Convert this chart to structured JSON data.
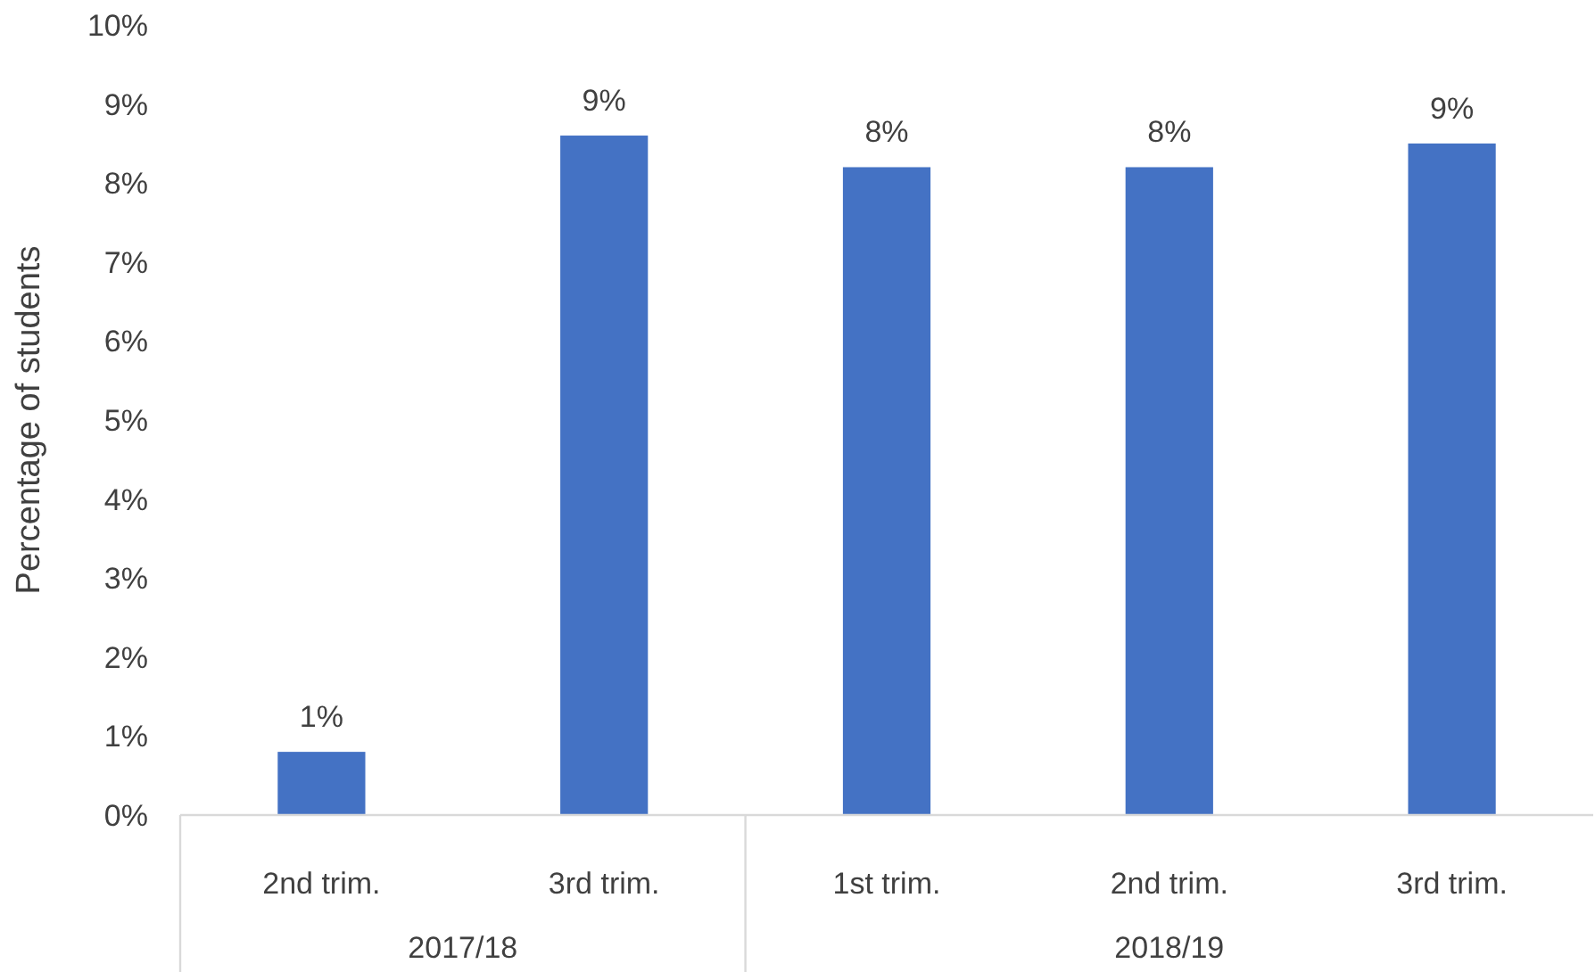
{
  "chart_data": {
    "type": "bar",
    "ylabel": "Percentage of students",
    "categories": [
      "2nd trim.",
      "3rd trim.",
      "1st trim.",
      "2nd trim.",
      "3rd trim."
    ],
    "values": [
      0.8,
      8.6,
      8.2,
      8.2,
      8.5
    ],
    "color": "#4472c4",
    "value_labels": [
      "1%",
      "9%",
      "8%",
      "8%",
      "9%"
    ],
    "ylim": [
      0,
      10
    ],
    "yticks": [
      {
        "value": 0,
        "label": "0%"
      },
      {
        "value": 1,
        "label": "1%"
      },
      {
        "value": 2,
        "label": "2%"
      },
      {
        "value": 3,
        "label": "3%"
      },
      {
        "value": 4,
        "label": "4%"
      },
      {
        "value": 5,
        "label": "5%"
      },
      {
        "value": 6,
        "label": "6%"
      },
      {
        "value": 7,
        "label": "7%"
      },
      {
        "value": 8,
        "label": "8%"
      },
      {
        "value": 9,
        "label": "9%"
      },
      {
        "value": 10,
        "label": "10%"
      }
    ],
    "annotations": [
      "2017/18",
      "2018/19"
    ]
  }
}
